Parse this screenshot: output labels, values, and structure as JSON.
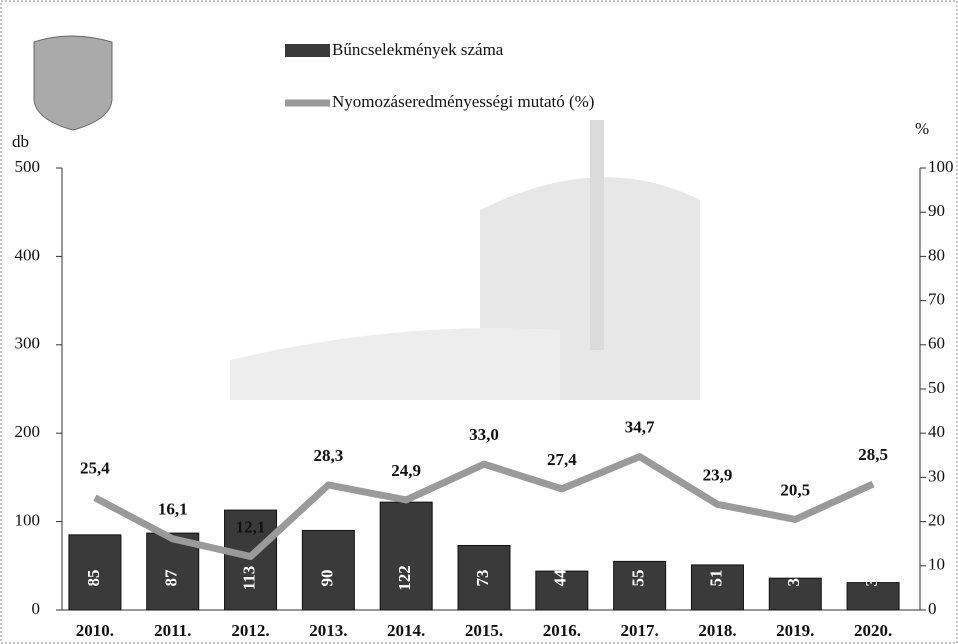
{
  "chart_data": {
    "type": "bar",
    "categories": [
      "2010.",
      "2011.",
      "2012.",
      "2013.",
      "2014.",
      "2015.",
      "2016.",
      "2017.",
      "2018.",
      "2019.",
      "2020."
    ],
    "series": [
      {
        "name": "Bűncselekmények száma",
        "color": "#3a3a3a",
        "values": [
          85,
          87,
          113,
          90,
          122,
          73,
          44,
          55,
          51,
          36,
          31
        ]
      },
      {
        "name": "Nyomozáseredményességi mutató (%)",
        "color": "#9a9a9a",
        "type": "line",
        "axis": "y2",
        "values": [
          25.4,
          16.1,
          12.1,
          28.3,
          24.9,
          33.0,
          27.4,
          34.7,
          23.9,
          20.5,
          28.5
        ],
        "value_labels": [
          "25,4",
          "16,1",
          "12,1",
          "28,3",
          "24,9",
          "33,0",
          "27,4",
          "34,7",
          "23,9",
          "20,5",
          "28,5"
        ]
      }
    ],
    "ylabel": "db",
    "y2label": "%",
    "ylim": [
      0,
      500
    ],
    "yticks": [
      0,
      100,
      200,
      300,
      400,
      500
    ],
    "y2lim": [
      0,
      100
    ],
    "y2ticks": [
      0,
      10,
      20,
      30,
      40,
      50,
      60,
      70,
      80,
      90,
      100
    ]
  }
}
